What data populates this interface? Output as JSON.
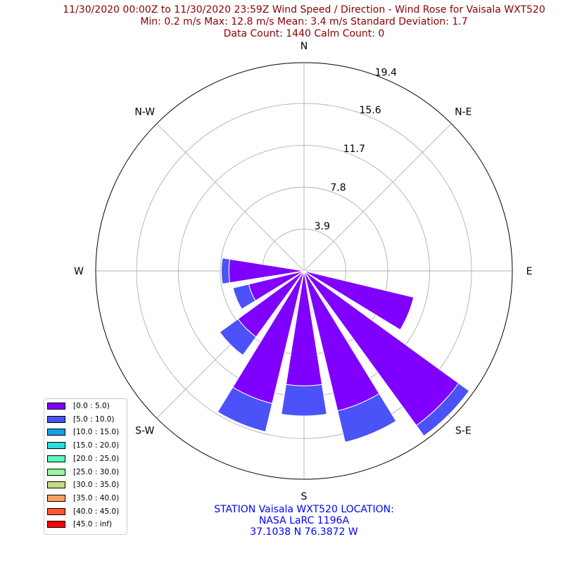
{
  "title": {
    "line1": "11/30/2020 00:00Z to 11/30/2020 23:59Z Wind Speed / Direction - Wind Rose for Vaisala WXT520",
    "line2": "Min: 0.2 m/s   Max: 12.8 m/s   Mean: 3.4 m/s  Standard Deviation: 1.7",
    "line3": "Data Count: 1440  Calm Count:  0"
  },
  "footer": {
    "line1": "STATION Vaisala WXT520 LOCATION:",
    "line2": "NASA LaRC 1196A",
    "line3": "37.1038 N 76.3872 W"
  },
  "chart_data": {
    "type": "windrose",
    "directions": [
      "N",
      "NNE",
      "NE",
      "ENE",
      "E",
      "ESE",
      "SE",
      "SSE",
      "S",
      "SSW",
      "SW",
      "WSW",
      "W",
      "WNW",
      "NW",
      "NNW"
    ],
    "direction_angles_deg": [
      0,
      22.5,
      45,
      67.5,
      90,
      112.5,
      135,
      157.5,
      180,
      202.5,
      225,
      247.5,
      270,
      292.5,
      315,
      337.5
    ],
    "compass_labels": [
      "N",
      "N-E",
      "E",
      "S-E",
      "S",
      "S-W",
      "W",
      "N-W"
    ],
    "radial_ticks": [
      3.9,
      7.8,
      11.7,
      15.6,
      19.4
    ],
    "rmax": 19.4,
    "series": [
      {
        "name": "[0.0 : 5.0)",
        "color": "#7f00ff",
        "values": [
          0,
          0,
          0,
          0,
          0.1,
          10.5,
          17.8,
          13.4,
          10.7,
          12.7,
          7.6,
          5.3,
          7.0,
          0,
          0,
          0
        ]
      },
      {
        "name": "[5.0 : 10.0)",
        "color": "#4b52f7",
        "values": [
          0,
          0,
          0,
          0,
          0,
          0,
          1.2,
          3.0,
          2.8,
          2.7,
          2.1,
          1.5,
          0.7,
          0,
          0,
          0
        ]
      },
      {
        "name": "[10.0 : 15.0)",
        "color": "#12a1ea",
        "values": [
          0,
          0,
          0,
          0,
          0,
          0,
          0,
          0,
          0,
          0,
          0,
          0,
          0,
          0,
          0,
          0
        ]
      },
      {
        "name": "[15.0 : 20.0)",
        "color": "#2adddd",
        "values": [
          0,
          0,
          0,
          0,
          0,
          0,
          0,
          0,
          0,
          0,
          0,
          0,
          0,
          0,
          0,
          0
        ]
      },
      {
        "name": "[20.0 : 25.0)",
        "color": "#5dfabf",
        "values": [
          0,
          0,
          0,
          0,
          0,
          0,
          0,
          0,
          0,
          0,
          0,
          0,
          0,
          0,
          0,
          0
        ]
      },
      {
        "name": "[25.0 : 30.0)",
        "color": "#96f99c",
        "values": [
          0,
          0,
          0,
          0,
          0,
          0,
          0,
          0,
          0,
          0,
          0,
          0,
          0,
          0,
          0,
          0
        ]
      },
      {
        "name": "[30.0 : 35.0)",
        "color": "#c6dd7f",
        "values": [
          0,
          0,
          0,
          0,
          0,
          0,
          0,
          0,
          0,
          0,
          0,
          0,
          0,
          0,
          0,
          0
        ]
      },
      {
        "name": "[35.0 : 40.0)",
        "color": "#fda15f",
        "values": [
          0,
          0,
          0,
          0,
          0,
          0,
          0,
          0,
          0,
          0,
          0,
          0,
          0,
          0,
          0,
          0
        ]
      },
      {
        "name": "[40.0 : 45.0)",
        "color": "#ff5632",
        "values": [
          0,
          0,
          0,
          0,
          0,
          0,
          0,
          0,
          0,
          0,
          0,
          0,
          0,
          0,
          0,
          0
        ]
      },
      {
        "name": "[45.0 : inf)",
        "color": "#ff0000",
        "values": [
          0,
          0,
          0,
          0,
          0,
          0,
          0,
          0,
          0,
          0,
          0,
          0,
          0,
          0,
          0,
          0
        ]
      }
    ],
    "grid": true,
    "legend_position": "lower-left"
  }
}
